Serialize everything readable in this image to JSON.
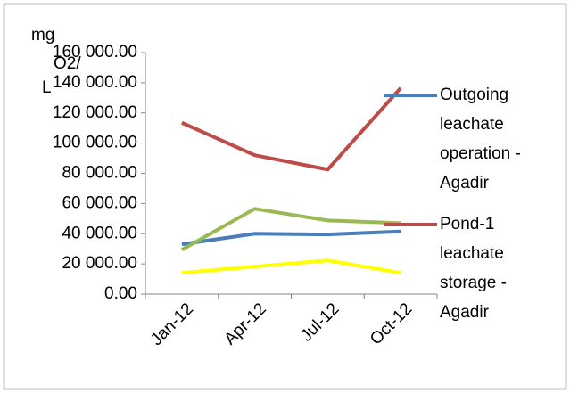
{
  "chart_data": {
    "type": "line",
    "y_label": [
      "mg",
      "O2/",
      "L"
    ],
    "categories": [
      "Jan-12",
      "Apr-12",
      "Jul-12",
      "Oct-12"
    ],
    "series": [
      {
        "name": "Outgoing leachate operation - Agadir",
        "color": "#4a7ebb",
        "values": [
          33000,
          40000,
          39500,
          41500
        ]
      },
      {
        "name": "Pond-1 leachate storage - Agadir",
        "color": "#be4b48",
        "values": [
          113500,
          92000,
          82500,
          136500
        ]
      },
      {
        "color": "#98b954",
        "values": [
          29400,
          56500,
          48800,
          47000
        ]
      },
      {
        "color": "#ffff00",
        "values": [
          14100,
          18200,
          22300,
          14100
        ]
      }
    ],
    "ylim": [
      0,
      160000
    ],
    "yticks": [
      {
        "value": 0,
        "label": "0.00"
      },
      {
        "value": 20000,
        "label": "20 000.00"
      },
      {
        "value": 40000,
        "label": "40 000.00"
      },
      {
        "value": 60000,
        "label": "60 000.00"
      },
      {
        "value": 80000,
        "label": "80 000.00"
      },
      {
        "value": 100000,
        "label": "100 000.00"
      },
      {
        "value": 120000,
        "label": "120 000.00"
      },
      {
        "value": 140000,
        "label": "140 000.00"
      },
      {
        "value": 160000,
        "label": "160 000.00"
      }
    ],
    "grid": false,
    "legend": "right"
  }
}
